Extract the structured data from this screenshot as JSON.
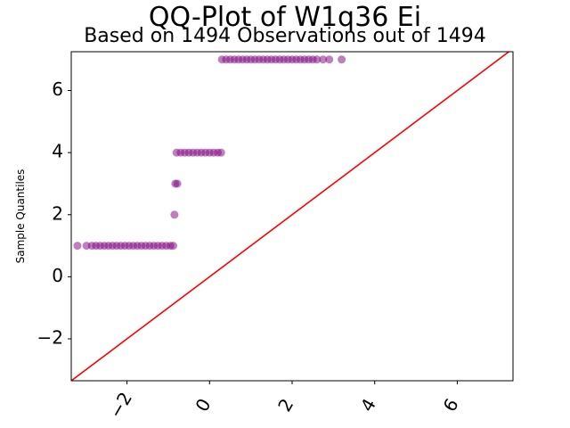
{
  "chart_data": {
    "type": "scatter",
    "title": "QQ-Plot of W1q36 Ei",
    "subtitle": "Based on 1494 Observations out of 1494",
    "xlabel": "",
    "ylabel": "Sample Quantiles",
    "xlim": [
      -3.35,
      7.35
    ],
    "ylim": [
      -3.35,
      7.25
    ],
    "xticks": [
      -2,
      0,
      2,
      4,
      6
    ],
    "xtick_labels": [
      "−2",
      "0",
      "2",
      "4",
      "6"
    ],
    "yticks": [
      -2,
      0,
      2,
      4,
      6
    ],
    "ytick_labels": [
      "−2",
      "0",
      "2",
      "4",
      "6"
    ],
    "grid": false,
    "point_color": "#800080",
    "line_color": "#ff0000",
    "reference_line": {
      "x": [
        -3.35,
        7.35
      ],
      "y": [
        -3.35,
        7.35
      ]
    },
    "series": [
      {
        "points": [
          {
            "x": -3.2,
            "y": 1
          },
          {
            "x": -2.98,
            "y": 1
          },
          {
            "x": -2.85,
            "y": 1
          },
          {
            "x": -2.75,
            "y": 1
          },
          {
            "x": -2.65,
            "y": 1
          },
          {
            "x": -2.55,
            "y": 1
          },
          {
            "x": -2.45,
            "y": 1
          },
          {
            "x": -2.35,
            "y": 1
          },
          {
            "x": -2.25,
            "y": 1
          },
          {
            "x": -2.15,
            "y": 1
          },
          {
            "x": -2.05,
            "y": 1
          },
          {
            "x": -1.95,
            "y": 1
          },
          {
            "x": -1.85,
            "y": 1
          },
          {
            "x": -1.75,
            "y": 1
          },
          {
            "x": -1.65,
            "y": 1
          },
          {
            "x": -1.55,
            "y": 1
          },
          {
            "x": -1.45,
            "y": 1
          },
          {
            "x": -1.35,
            "y": 1
          },
          {
            "x": -1.25,
            "y": 1
          },
          {
            "x": -1.15,
            "y": 1
          },
          {
            "x": -1.05,
            "y": 1
          },
          {
            "x": -0.95,
            "y": 1
          },
          {
            "x": -0.88,
            "y": 1
          },
          {
            "x": -0.85,
            "y": 2
          },
          {
            "x": -0.83,
            "y": 3
          },
          {
            "x": -0.78,
            "y": 3
          },
          {
            "x": -0.8,
            "y": 4
          },
          {
            "x": -0.7,
            "y": 4
          },
          {
            "x": -0.6,
            "y": 4
          },
          {
            "x": -0.5,
            "y": 4
          },
          {
            "x": -0.4,
            "y": 4
          },
          {
            "x": -0.3,
            "y": 4
          },
          {
            "x": -0.2,
            "y": 4
          },
          {
            "x": -0.1,
            "y": 4
          },
          {
            "x": 0.0,
            "y": 4
          },
          {
            "x": 0.1,
            "y": 4
          },
          {
            "x": 0.2,
            "y": 4
          },
          {
            "x": 0.28,
            "y": 4
          },
          {
            "x": 0.3,
            "y": 7
          },
          {
            "x": 0.4,
            "y": 7
          },
          {
            "x": 0.5,
            "y": 7
          },
          {
            "x": 0.6,
            "y": 7
          },
          {
            "x": 0.7,
            "y": 7
          },
          {
            "x": 0.8,
            "y": 7
          },
          {
            "x": 0.9,
            "y": 7
          },
          {
            "x": 1.0,
            "y": 7
          },
          {
            "x": 1.1,
            "y": 7
          },
          {
            "x": 1.2,
            "y": 7
          },
          {
            "x": 1.3,
            "y": 7
          },
          {
            "x": 1.4,
            "y": 7
          },
          {
            "x": 1.5,
            "y": 7
          },
          {
            "x": 1.6,
            "y": 7
          },
          {
            "x": 1.7,
            "y": 7
          },
          {
            "x": 1.8,
            "y": 7
          },
          {
            "x": 1.9,
            "y": 7
          },
          {
            "x": 2.0,
            "y": 7
          },
          {
            "x": 2.1,
            "y": 7
          },
          {
            "x": 2.2,
            "y": 7
          },
          {
            "x": 2.3,
            "y": 7
          },
          {
            "x": 2.4,
            "y": 7
          },
          {
            "x": 2.5,
            "y": 7
          },
          {
            "x": 2.6,
            "y": 7
          },
          {
            "x": 2.75,
            "y": 7
          },
          {
            "x": 2.9,
            "y": 7
          },
          {
            "x": 3.2,
            "y": 7
          }
        ]
      }
    ]
  }
}
